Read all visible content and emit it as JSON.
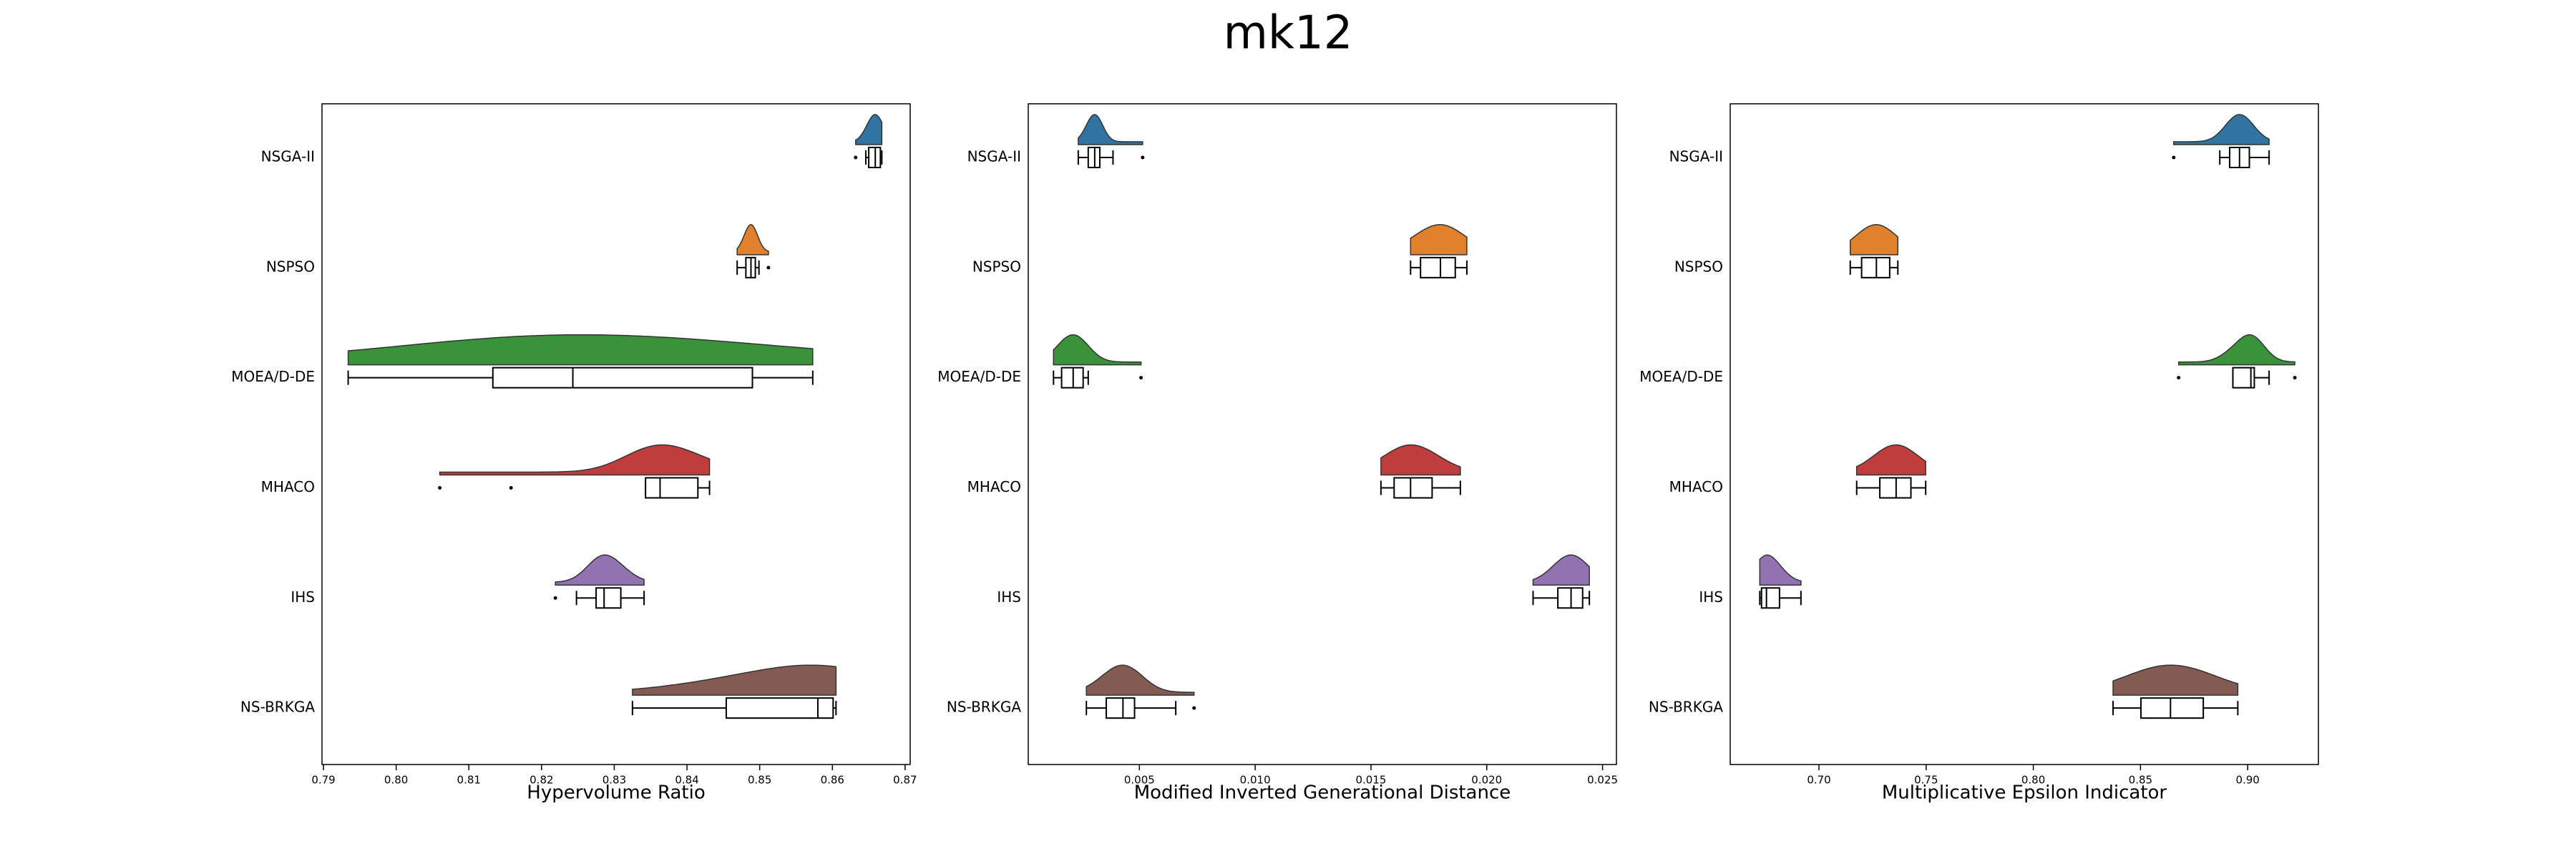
{
  "title": "mk12",
  "chart_data": [
    {
      "type": "raincloud",
      "xlabel": "Hypervolume Ratio",
      "categories": [
        "NSGA-II",
        "NSPSO",
        "MOEA/D-DE",
        "MHACO",
        "IHS",
        "NS-BRKGA"
      ],
      "colors": [
        "#3274a1",
        "#e1812c",
        "#3a923a",
        "#c03d3e",
        "#9372b2",
        "#845b53"
      ],
      "boxes": [
        {
          "min": 0.8646,
          "q1": 0.865,
          "median": 0.8659,
          "q3": 0.8666,
          "max": 0.8668,
          "outliers": [
            0.8632
          ]
        },
        {
          "min": 0.8469,
          "q1": 0.8481,
          "median": 0.8488,
          "q3": 0.8494,
          "max": 0.8499,
          "outliers": [
            0.8512
          ]
        },
        {
          "min": 0.7934,
          "q1": 0.8133,
          "median": 0.8243,
          "q3": 0.849,
          "max": 0.8573,
          "outliers": []
        },
        {
          "min": 0.8343,
          "q1": 0.8343,
          "median": 0.8363,
          "q3": 0.8415,
          "max": 0.8431,
          "outliers": [
            0.806,
            0.8158
          ]
        },
        {
          "min": 0.8248,
          "q1": 0.8275,
          "median": 0.8286,
          "q3": 0.8309,
          "max": 0.8341,
          "outliers": [
            0.8219
          ]
        },
        {
          "min": 0.8325,
          "q1": 0.8454,
          "median": 0.858,
          "q3": 0.8601,
          "max": 0.8605,
          "outliers": []
        }
      ],
      "xlim": [
        0.7898,
        0.8707
      ],
      "xticks": [
        0.79,
        {
          "value": 0.8,
          "label": "0.80"
        },
        0.81,
        0.82,
        0.83,
        0.84,
        0.85,
        0.86,
        0.87
      ]
    },
    {
      "type": "raincloud",
      "xlabel": "Modified Inverted Generational Distance",
      "categories": [
        "NSGA-II",
        "NSPSO",
        "MOEA/D-DE",
        "MHACO",
        "IHS",
        "NS-BRKGA"
      ],
      "colors": [
        "#3274a1",
        "#e1812c",
        "#3a923a",
        "#c03d3e",
        "#9372b2",
        "#845b53"
      ],
      "boxes": [
        {
          "min": 0.00236,
          "q1": 0.00279,
          "median": 0.00307,
          "q3": 0.00329,
          "max": 0.00386,
          "outliers": [
            0.00514
          ]
        },
        {
          "min": 0.01671,
          "q1": 0.01714,
          "median": 0.018,
          "q3": 0.01864,
          "max": 0.01914,
          "outliers": []
        },
        {
          "min": 0.00129,
          "q1": 0.00164,
          "median": 0.00214,
          "q3": 0.00257,
          "max": 0.00279,
          "outliers": [
            0.00507
          ]
        },
        {
          "min": 0.01543,
          "q1": 0.016,
          "median": 0.01671,
          "q3": 0.01764,
          "max": 0.01886,
          "outliers": []
        },
        {
          "min": 0.022,
          "q1": 0.02307,
          "median": 0.02364,
          "q3": 0.02414,
          "max": 0.02443,
          "outliers": []
        },
        {
          "min": 0.00271,
          "q1": 0.00357,
          "median": 0.00429,
          "q3": 0.00479,
          "max": 0.00657,
          "outliers": [
            0.00736
          ]
        }
      ],
      "xlim": [
        0.0002,
        0.0256
      ],
      "xticks": [
        0.005,
        {
          "value": 0.01,
          "label": "0.010"
        },
        0.015,
        {
          "value": 0.02,
          "label": "0.020"
        },
        0.025
      ]
    },
    {
      "type": "raincloud",
      "xlabel": "Multiplicative Epsilon Indicator",
      "categories": [
        "NSGA-II",
        "NSPSO",
        "MOEA/D-DE",
        "MHACO",
        "IHS",
        "NS-BRKGA"
      ],
      "colors": [
        "#3274a1",
        "#e1812c",
        "#3a923a",
        "#c03d3e",
        "#9372b2",
        "#845b53"
      ],
      "boxes": [
        {
          "min": 0.887,
          "q1": 0.8916,
          "median": 0.8962,
          "q3": 0.9008,
          "max": 0.91,
          "outliers": [
            0.8655
          ]
        },
        {
          "min": 0.7146,
          "q1": 0.7199,
          "median": 0.7268,
          "q3": 0.733,
          "max": 0.7368,
          "outliers": []
        },
        {
          "min": 0.8931,
          "q1": 0.8931,
          "median": 0.9015,
          "q3": 0.9031,
          "max": 0.91,
          "outliers": [
            0.8678,
            0.922
          ]
        },
        {
          "min": 0.7176,
          "q1": 0.7284,
          "median": 0.736,
          "q3": 0.7429,
          "max": 0.7498,
          "outliers": []
        },
        {
          "min": 0.6724,
          "q1": 0.6732,
          "median": 0.6755,
          "q3": 0.6816,
          "max": 0.6916,
          "outliers": []
        },
        {
          "min": 0.8372,
          "q1": 0.8502,
          "median": 0.864,
          "q3": 0.8793,
          "max": 0.8954,
          "outliers": []
        }
      ],
      "xlim": [
        0.6586,
        0.933
      ],
      "xticks": [
        {
          "value": 0.7,
          "label": "0.70"
        },
        0.75,
        {
          "value": 0.8,
          "label": "0.80"
        },
        0.85,
        {
          "value": 0.9,
          "label": "0.90"
        }
      ]
    }
  ]
}
